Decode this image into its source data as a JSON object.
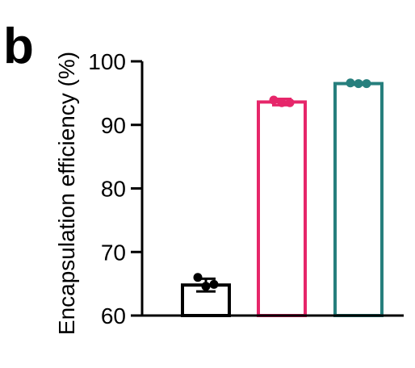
{
  "panel_label": "b",
  "chart_data": {
    "type": "bar",
    "categories": [
      "",
      "",
      ""
    ],
    "series": [
      {
        "values": [
          64.8,
          93.6,
          96.5
        ],
        "errors": [
          1.0,
          0.5,
          0.2
        ],
        "points": [
          [
            66.0,
            64.6,
            64.9
          ],
          [
            93.9,
            93.5,
            93.5
          ],
          [
            96.6,
            96.5,
            96.5
          ]
        ],
        "colors": [
          "#000000",
          "#e6266a",
          "#267f7d"
        ]
      }
    ],
    "ylabel": "Encapsulation efficiency (%)",
    "ylim": [
      60,
      100
    ],
    "yticks": [
      60,
      70,
      80,
      90,
      100
    ],
    "ytick_labels": [
      "60",
      "70",
      "80",
      "90",
      "100"
    ],
    "grid": false,
    "legend": "none"
  }
}
